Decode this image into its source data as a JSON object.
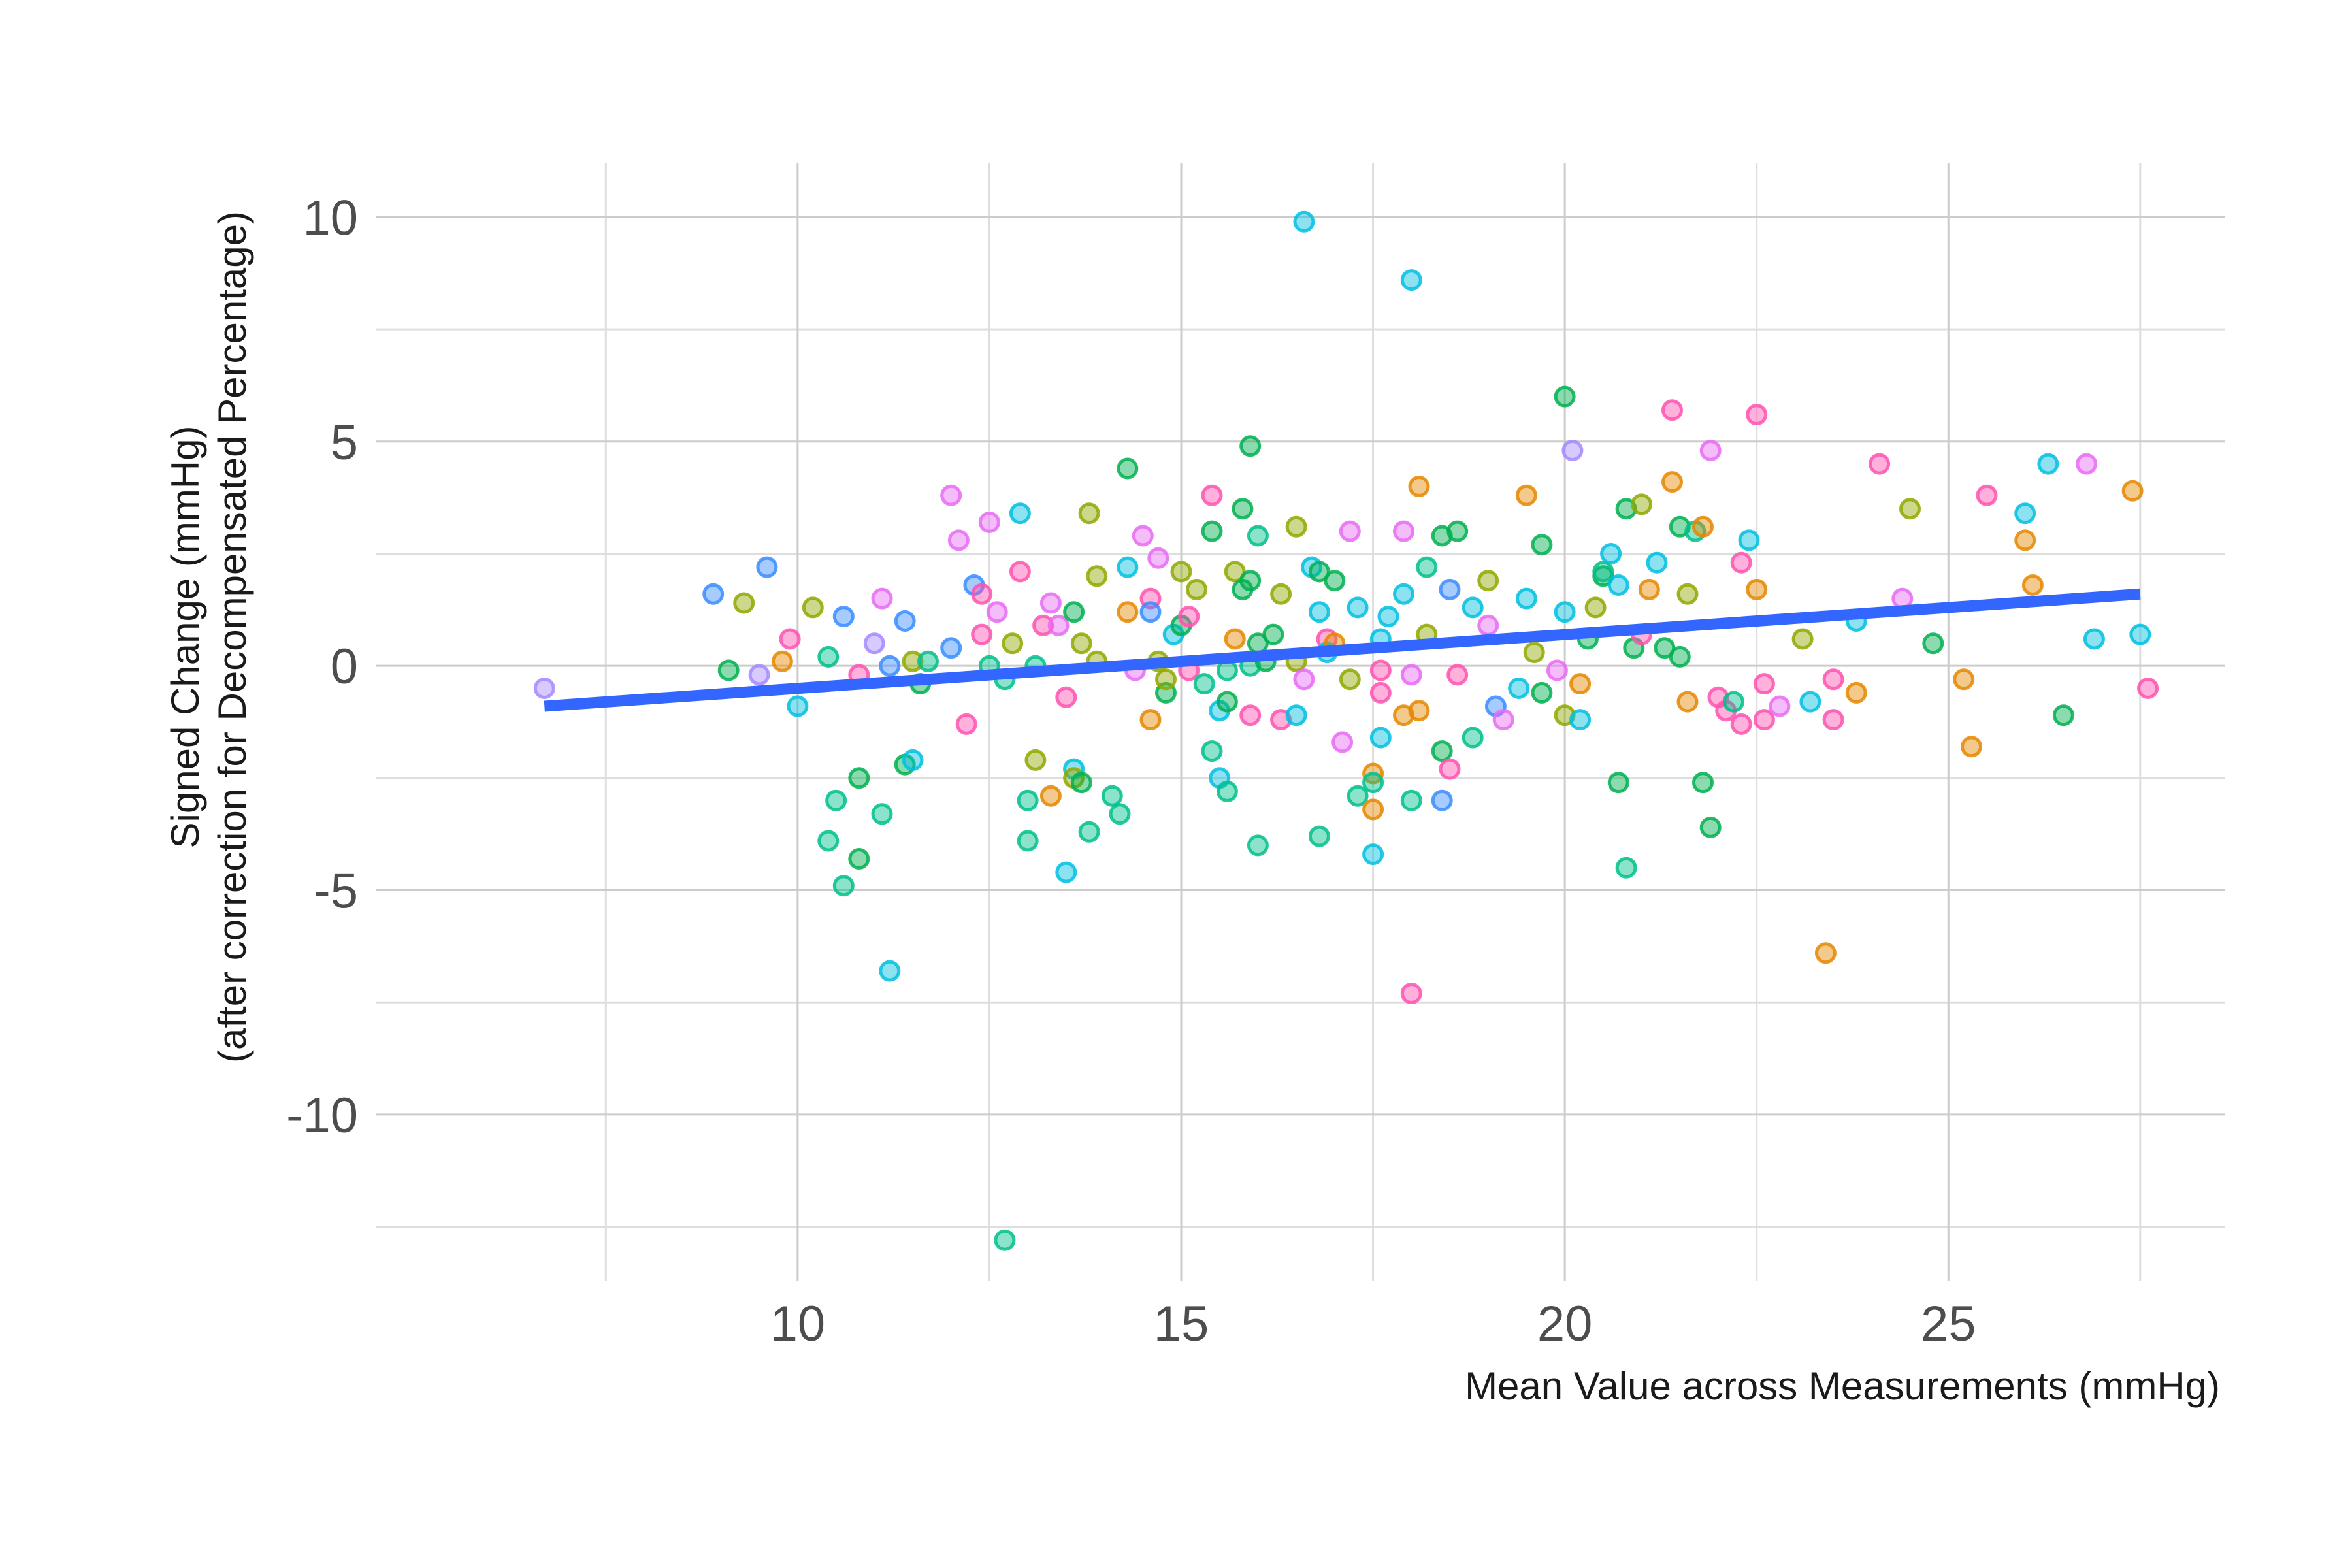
{
  "chart_data": {
    "type": "scatter",
    "xlabel": "Mean Value across Measurements (mmHg)",
    "ylabel_line1": "Signed Change (mmHg)",
    "ylabel_line2": "(after correction for Decompensated Percentage)",
    "xlim": [
      4.5,
      28.6
    ],
    "ylim": [
      -13.7,
      11.2
    ],
    "x_ticks": [
      10,
      15,
      20,
      25
    ],
    "y_ticks": [
      10,
      5,
      0,
      -5,
      -10
    ],
    "x_minor": [
      7.5,
      12.5,
      17.5,
      22.5,
      27.5
    ],
    "y_minor": [
      7.5,
      2.5,
      -2.5,
      -7.5,
      -12.5
    ],
    "point_alpha": 0.45,
    "trend_line": {
      "x": [
        6.7,
        27.5
      ],
      "y": [
        -0.9,
        1.6
      ],
      "color": "#3366ff"
    },
    "palette": {
      "cyan": "#00bfe0",
      "green": "#00b050",
      "teal": "#00c08b",
      "olive": "#90a800",
      "orange": "#e58700",
      "pink": "#ff52b0",
      "magenta": "#e76bf3",
      "blue": "#3a8cff",
      "lavender": "#a58aff"
    },
    "points": [
      [
        6.7,
        -0.5,
        "lavender"
      ],
      [
        8.9,
        1.6,
        "blue"
      ],
      [
        9.1,
        -0.1,
        "green"
      ],
      [
        9.3,
        1.4,
        "olive"
      ],
      [
        9.5,
        -0.2,
        "lavender"
      ],
      [
        9.6,
        2.2,
        "blue"
      ],
      [
        9.8,
        0.1,
        "orange"
      ],
      [
        9.9,
        0.6,
        "pink"
      ],
      [
        10.0,
        -0.9,
        "cyan"
      ],
      [
        10.2,
        1.3,
        "olive"
      ],
      [
        10.4,
        0.2,
        "teal"
      ],
      [
        10.4,
        -3.9,
        "teal"
      ],
      [
        10.5,
        -3.0,
        "teal"
      ],
      [
        10.6,
        1.1,
        "blue"
      ],
      [
        10.6,
        -4.9,
        "teal"
      ],
      [
        10.8,
        -2.5,
        "green"
      ],
      [
        10.8,
        -4.3,
        "green"
      ],
      [
        10.8,
        -0.2,
        "pink"
      ],
      [
        11.0,
        0.5,
        "lavender"
      ],
      [
        11.1,
        1.5,
        "magenta"
      ],
      [
        11.1,
        -3.3,
        "teal"
      ],
      [
        11.2,
        -6.8,
        "cyan"
      ],
      [
        11.2,
        0.0,
        "blue"
      ],
      [
        11.4,
        1.0,
        "blue"
      ],
      [
        11.4,
        -2.2,
        "green"
      ],
      [
        11.5,
        0.1,
        "olive"
      ],
      [
        11.5,
        -2.1,
        "cyan"
      ],
      [
        11.6,
        -0.4,
        "green"
      ],
      [
        11.7,
        0.1,
        "teal"
      ],
      [
        12.0,
        0.4,
        "blue"
      ],
      [
        12.0,
        3.8,
        "magenta"
      ],
      [
        12.1,
        2.8,
        "magenta"
      ],
      [
        12.2,
        -1.3,
        "pink"
      ],
      [
        12.3,
        1.8,
        "blue"
      ],
      [
        12.4,
        1.6,
        "pink"
      ],
      [
        12.4,
        0.7,
        "pink"
      ],
      [
        12.5,
        3.2,
        "magenta"
      ],
      [
        12.5,
        0.0,
        "teal"
      ],
      [
        12.6,
        1.2,
        "magenta"
      ],
      [
        12.7,
        -12.8,
        "teal"
      ],
      [
        12.7,
        -0.3,
        "teal"
      ],
      [
        12.8,
        0.5,
        "olive"
      ],
      [
        12.9,
        2.1,
        "pink"
      ],
      [
        12.9,
        3.4,
        "cyan"
      ],
      [
        13.0,
        -3.0,
        "teal"
      ],
      [
        13.0,
        -3.9,
        "teal"
      ],
      [
        13.1,
        -2.1,
        "olive"
      ],
      [
        13.1,
        0.0,
        "teal"
      ],
      [
        13.2,
        0.9,
        "pink"
      ],
      [
        13.3,
        -2.9,
        "orange"
      ],
      [
        13.3,
        1.4,
        "magenta"
      ],
      [
        13.4,
        0.9,
        "magenta"
      ],
      [
        13.5,
        -4.6,
        "cyan"
      ],
      [
        13.5,
        -0.7,
        "pink"
      ],
      [
        13.6,
        -2.3,
        "cyan"
      ],
      [
        13.6,
        1.2,
        "green"
      ],
      [
        13.6,
        -2.5,
        "olive"
      ],
      [
        13.7,
        -2.6,
        "green"
      ],
      [
        13.7,
        0.5,
        "olive"
      ],
      [
        13.8,
        3.4,
        "olive"
      ],
      [
        13.8,
        -3.7,
        "teal"
      ],
      [
        13.9,
        2.0,
        "olive"
      ],
      [
        13.9,
        0.1,
        "olive"
      ],
      [
        14.1,
        -2.9,
        "teal"
      ],
      [
        14.2,
        -3.3,
        "teal"
      ],
      [
        14.3,
        4.4,
        "green"
      ],
      [
        14.3,
        2.2,
        "cyan"
      ],
      [
        14.3,
        1.2,
        "orange"
      ],
      [
        14.4,
        -0.1,
        "magenta"
      ],
      [
        14.5,
        2.9,
        "magenta"
      ],
      [
        14.6,
        1.5,
        "pink"
      ],
      [
        14.6,
        1.2,
        "blue"
      ],
      [
        14.6,
        -1.2,
        "orange"
      ],
      [
        14.7,
        0.1,
        "olive"
      ],
      [
        14.7,
        2.4,
        "magenta"
      ],
      [
        14.8,
        -0.6,
        "green"
      ],
      [
        14.8,
        -0.3,
        "olive"
      ],
      [
        14.9,
        0.7,
        "cyan"
      ],
      [
        15.0,
        2.1,
        "olive"
      ],
      [
        15.0,
        0.9,
        "green"
      ],
      [
        15.1,
        -0.1,
        "pink"
      ],
      [
        15.1,
        1.1,
        "pink"
      ],
      [
        15.2,
        1.7,
        "olive"
      ],
      [
        15.3,
        -0.4,
        "teal"
      ],
      [
        15.4,
        3.8,
        "pink"
      ],
      [
        15.4,
        3.0,
        "green"
      ],
      [
        15.4,
        -1.9,
        "teal"
      ],
      [
        15.5,
        -2.5,
        "cyan"
      ],
      [
        15.5,
        -1.0,
        "cyan"
      ],
      [
        15.6,
        -2.8,
        "teal"
      ],
      [
        15.6,
        -0.8,
        "green"
      ],
      [
        15.6,
        -0.1,
        "teal"
      ],
      [
        15.7,
        2.1,
        "olive"
      ],
      [
        15.7,
        0.6,
        "orange"
      ],
      [
        15.8,
        3.5,
        "green"
      ],
      [
        15.8,
        1.7,
        "green"
      ],
      [
        15.9,
        1.9,
        "green"
      ],
      [
        15.9,
        -1.1,
        "pink"
      ],
      [
        15.9,
        4.9,
        "green"
      ],
      [
        15.9,
        0.0,
        "teal"
      ],
      [
        16.0,
        -4.0,
        "teal"
      ],
      [
        16.0,
        2.9,
        "teal"
      ],
      [
        16.0,
        0.5,
        "green"
      ],
      [
        16.1,
        0.1,
        "green"
      ],
      [
        16.2,
        0.7,
        "green"
      ],
      [
        16.3,
        1.6,
        "olive"
      ],
      [
        16.3,
        -1.2,
        "pink"
      ],
      [
        16.5,
        0.1,
        "olive"
      ],
      [
        16.5,
        3.1,
        "olive"
      ],
      [
        16.5,
        -1.1,
        "cyan"
      ],
      [
        16.6,
        9.9,
        "cyan"
      ],
      [
        16.6,
        -0.3,
        "magenta"
      ],
      [
        16.7,
        2.2,
        "cyan"
      ],
      [
        16.8,
        1.2,
        "cyan"
      ],
      [
        16.8,
        2.1,
        "green"
      ],
      [
        16.8,
        -3.8,
        "teal"
      ],
      [
        16.9,
        0.6,
        "pink"
      ],
      [
        16.9,
        0.3,
        "cyan"
      ],
      [
        17.0,
        0.5,
        "orange"
      ],
      [
        17.0,
        1.9,
        "green"
      ],
      [
        17.1,
        -1.7,
        "magenta"
      ],
      [
        17.2,
        3.0,
        "magenta"
      ],
      [
        17.2,
        -0.3,
        "olive"
      ],
      [
        17.3,
        -2.9,
        "teal"
      ],
      [
        17.3,
        1.3,
        "cyan"
      ],
      [
        17.5,
        -2.4,
        "orange"
      ],
      [
        17.5,
        -2.6,
        "teal"
      ],
      [
        17.5,
        -3.2,
        "orange"
      ],
      [
        17.5,
        -4.2,
        "cyan"
      ],
      [
        17.6,
        -0.1,
        "pink"
      ],
      [
        17.6,
        -0.6,
        "pink"
      ],
      [
        17.6,
        -1.6,
        "cyan"
      ],
      [
        17.6,
        0.6,
        "cyan"
      ],
      [
        17.7,
        1.1,
        "cyan"
      ],
      [
        17.9,
        -1.1,
        "orange"
      ],
      [
        17.9,
        3.0,
        "magenta"
      ],
      [
        17.9,
        1.6,
        "cyan"
      ],
      [
        18.0,
        8.6,
        "cyan"
      ],
      [
        18.0,
        -7.3,
        "pink"
      ],
      [
        18.0,
        -3.0,
        "teal"
      ],
      [
        18.0,
        -0.2,
        "magenta"
      ],
      [
        18.1,
        4.0,
        "orange"
      ],
      [
        18.1,
        -1.0,
        "orange"
      ],
      [
        18.2,
        2.2,
        "teal"
      ],
      [
        18.2,
        0.7,
        "olive"
      ],
      [
        18.4,
        -1.9,
        "green"
      ],
      [
        18.4,
        2.9,
        "green"
      ],
      [
        18.4,
        -3.0,
        "blue"
      ],
      [
        18.5,
        1.7,
        "blue"
      ],
      [
        18.5,
        -2.3,
        "pink"
      ],
      [
        18.6,
        3.0,
        "green"
      ],
      [
        18.6,
        -0.2,
        "pink"
      ],
      [
        18.8,
        1.3,
        "cyan"
      ],
      [
        18.8,
        -1.6,
        "teal"
      ],
      [
        19.0,
        0.9,
        "magenta"
      ],
      [
        19.0,
        1.9,
        "olive"
      ],
      [
        19.1,
        -0.9,
        "blue"
      ],
      [
        19.2,
        -1.2,
        "magenta"
      ],
      [
        19.4,
        -0.5,
        "cyan"
      ],
      [
        19.5,
        3.8,
        "orange"
      ],
      [
        19.5,
        1.5,
        "cyan"
      ],
      [
        19.6,
        0.3,
        "olive"
      ],
      [
        19.7,
        2.7,
        "green"
      ],
      [
        19.7,
        -0.6,
        "green"
      ],
      [
        19.9,
        -0.1,
        "magenta"
      ],
      [
        20.0,
        6.0,
        "green"
      ],
      [
        20.0,
        -1.1,
        "olive"
      ],
      [
        20.0,
        1.2,
        "cyan"
      ],
      [
        20.1,
        4.8,
        "lavender"
      ],
      [
        20.2,
        -1.2,
        "cyan"
      ],
      [
        20.2,
        -0.4,
        "orange"
      ],
      [
        20.3,
        0.6,
        "green"
      ],
      [
        20.4,
        1.3,
        "olive"
      ],
      [
        20.5,
        2.0,
        "green"
      ],
      [
        20.5,
        2.1,
        "teal"
      ],
      [
        20.6,
        2.5,
        "cyan"
      ],
      [
        20.7,
        1.8,
        "cyan"
      ],
      [
        20.7,
        -2.6,
        "green"
      ],
      [
        20.8,
        3.5,
        "green"
      ],
      [
        20.8,
        -4.5,
        "teal"
      ],
      [
        20.9,
        0.4,
        "green"
      ],
      [
        21.0,
        0.7,
        "pink"
      ],
      [
        21.0,
        3.6,
        "olive"
      ],
      [
        21.1,
        1.7,
        "orange"
      ],
      [
        21.2,
        2.3,
        "cyan"
      ],
      [
        21.3,
        0.4,
        "green"
      ],
      [
        21.4,
        5.7,
        "pink"
      ],
      [
        21.4,
        4.1,
        "orange"
      ],
      [
        21.5,
        3.1,
        "green"
      ],
      [
        21.5,
        0.2,
        "green"
      ],
      [
        21.6,
        1.6,
        "olive"
      ],
      [
        21.6,
        -0.8,
        "orange"
      ],
      [
        21.7,
        3.0,
        "teal"
      ],
      [
        21.8,
        3.1,
        "orange"
      ],
      [
        21.8,
        -2.6,
        "green"
      ],
      [
        21.9,
        4.8,
        "magenta"
      ],
      [
        21.9,
        -3.6,
        "green"
      ],
      [
        22.0,
        -0.7,
        "pink"
      ],
      [
        22.1,
        -1.0,
        "pink"
      ],
      [
        22.2,
        -0.8,
        "teal"
      ],
      [
        22.3,
        2.3,
        "pink"
      ],
      [
        22.3,
        -1.3,
        "pink"
      ],
      [
        22.4,
        2.8,
        "cyan"
      ],
      [
        22.5,
        1.7,
        "orange"
      ],
      [
        22.5,
        5.6,
        "pink"
      ],
      [
        22.6,
        -0.4,
        "pink"
      ],
      [
        22.6,
        -1.2,
        "pink"
      ],
      [
        22.8,
        -0.9,
        "magenta"
      ],
      [
        23.1,
        0.6,
        "olive"
      ],
      [
        23.2,
        -0.8,
        "cyan"
      ],
      [
        23.4,
        -6.4,
        "orange"
      ],
      [
        23.5,
        -0.3,
        "pink"
      ],
      [
        23.5,
        -1.2,
        "pink"
      ],
      [
        23.8,
        1.0,
        "cyan"
      ],
      [
        23.8,
        -0.6,
        "orange"
      ],
      [
        24.1,
        4.5,
        "pink"
      ],
      [
        24.4,
        1.5,
        "magenta"
      ],
      [
        24.5,
        3.5,
        "olive"
      ],
      [
        24.8,
        0.5,
        "green"
      ],
      [
        25.2,
        -0.3,
        "orange"
      ],
      [
        25.3,
        -1.8,
        "orange"
      ],
      [
        25.5,
        3.8,
        "pink"
      ],
      [
        26.0,
        3.4,
        "cyan"
      ],
      [
        26.0,
        2.8,
        "orange"
      ],
      [
        26.1,
        1.8,
        "orange"
      ],
      [
        26.3,
        4.5,
        "cyan"
      ],
      [
        26.5,
        -1.1,
        "green"
      ],
      [
        26.8,
        4.5,
        "magenta"
      ],
      [
        26.9,
        0.6,
        "cyan"
      ],
      [
        27.4,
        3.9,
        "orange"
      ],
      [
        27.5,
        0.7,
        "cyan"
      ],
      [
        27.6,
        -0.5,
        "pink"
      ]
    ]
  }
}
